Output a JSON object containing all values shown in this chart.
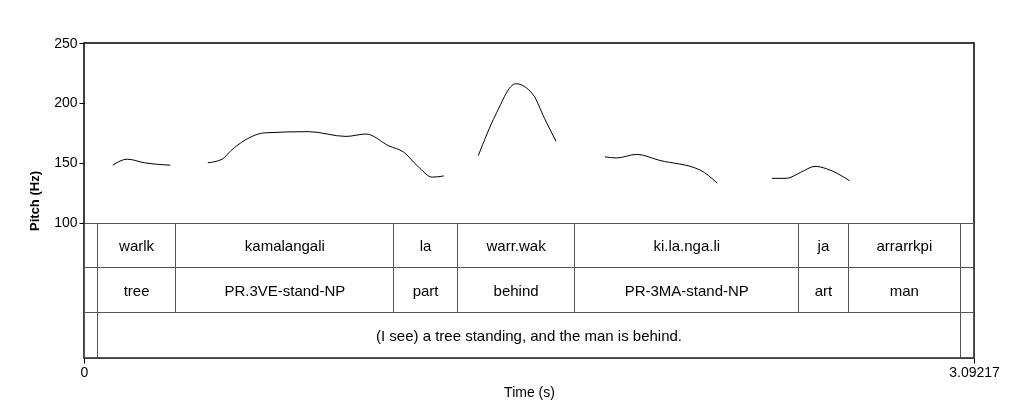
{
  "chart_data": {
    "type": "line",
    "xlabel": "Time (s)",
    "ylabel": "Pitch (Hz)",
    "xlim": [
      0,
      3.09217
    ],
    "xticks": [
      0,
      3.09217
    ],
    "ylim": [
      -13,
      250
    ],
    "yticks": [
      100,
      150,
      200,
      250
    ],
    "marker": "none",
    "line_style": "solid",
    "series": [
      {
        "color": "#000000",
        "x": [
          0.1,
          0.15,
          0.21,
          0.3,
          0.36,
          0.43,
          0.48,
          0.51,
          0.56,
          0.63,
          0.78,
          0.91,
          0.98,
          1.06,
          1.11,
          1.16,
          1.21,
          1.25,
          1.31,
          1.37,
          1.43,
          1.5,
          1.56,
          1.6,
          1.64,
          1.73,
          1.81,
          1.85,
          1.92,
          2.0,
          2.14,
          2.2,
          2.3,
          2.39,
          2.44,
          2.49,
          2.54,
          2.58,
          2.66
        ],
        "values": [
          148,
          153,
          150,
          148,
          null,
          150,
          153,
          160,
          169,
          175,
          176,
          172,
          174,
          164,
          159,
          147,
          138,
          139,
          null,
          156,
          190,
          216,
          207,
          187,
          168,
          null,
          155,
          154,
          157,
          152,
          144,
          133,
          null,
          137,
          137,
          142,
          147,
          145,
          135
        ]
      }
    ],
    "annotations": [
      "warlk",
      "kamalangali",
      "la",
      "warr.wak",
      "ki.la.nga.li",
      "ja",
      "arrarrkpi",
      "tree",
      "PR.3VE-stand-NP",
      "part",
      "behind",
      "PR-3MA-stand-NP",
      "art",
      "man",
      "(I see) a tree standing, and the man is behind."
    ]
  }
}
